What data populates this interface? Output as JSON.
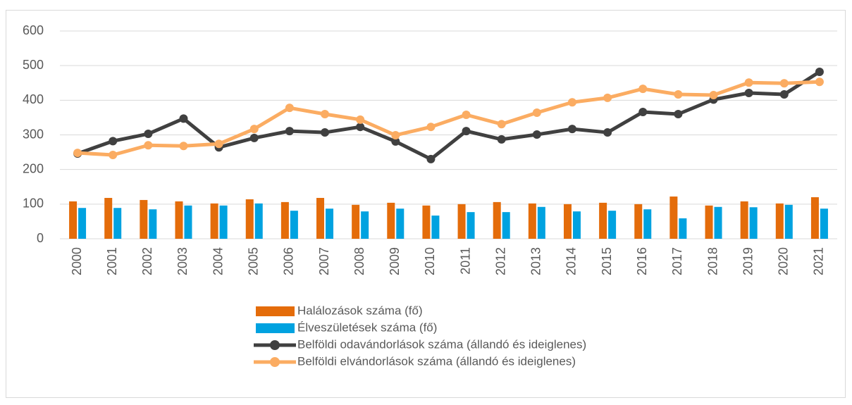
{
  "chart_data": {
    "type": "combo",
    "categories": [
      "2000",
      "2001",
      "2002",
      "2003",
      "2004",
      "2005",
      "2006",
      "2007",
      "2008",
      "2009",
      "2010",
      "2011",
      "2012",
      "2013",
      "2014",
      "2015",
      "2016",
      "2017",
      "2018",
      "2019",
      "2020",
      "2021"
    ],
    "series": [
      {
        "name": "Halálozások száma (fő)",
        "type": "bar",
        "color": "#e46c0a",
        "values": [
          108,
          118,
          112,
          108,
          102,
          114,
          106,
          118,
          98,
          104,
          96,
          100,
          106,
          102,
          100,
          104,
          100,
          122,
          96,
          108,
          102,
          120
        ]
      },
      {
        "name": "Élveszületések száma (fő)",
        "type": "bar",
        "color": "#00a2e0",
        "values": [
          89,
          89,
          85,
          96,
          96,
          102,
          81,
          87,
          79,
          87,
          67,
          77,
          77,
          92,
          79,
          81,
          85,
          59,
          92,
          91,
          98,
          87
        ]
      },
      {
        "name": "Belföldi odavándorlások száma (állandó és ideiglenes)",
        "type": "line",
        "color": "#404040",
        "values": [
          246,
          282,
          303,
          347,
          264,
          291,
          311,
          307,
          323,
          281,
          230,
          311,
          287,
          301,
          317,
          307,
          366,
          360,
          402,
          421,
          417,
          482
        ]
      },
      {
        "name": "Belföldi elvándorlások száma (állandó és ideiglenes)",
        "type": "line",
        "color": "#fbac62",
        "values": [
          248,
          242,
          270,
          268,
          274,
          317,
          378,
          360,
          344,
          299,
          323,
          358,
          331,
          364,
          394,
          407,
          433,
          417,
          415,
          451,
          449,
          453
        ]
      }
    ],
    "ylim": [
      0,
      600
    ],
    "yticks": [
      0,
      100,
      200,
      300,
      400,
      500,
      600
    ],
    "grid": true,
    "legend": "bottom"
  }
}
